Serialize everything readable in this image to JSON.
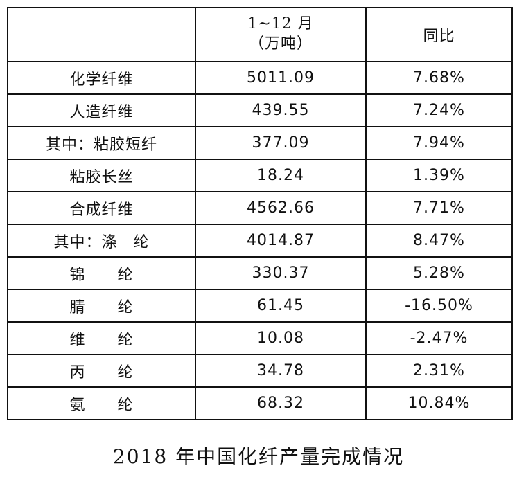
{
  "table": {
    "header": {
      "blank": "",
      "period": "1~12 月",
      "unit": "（万吨）",
      "yoy": "同比"
    },
    "rows": [
      {
        "name": "化学纤维",
        "value": "5011.09",
        "yoy": "7.68%"
      },
      {
        "name": "人造纤维",
        "value": "439.55",
        "yoy": "7.24%"
      },
      {
        "name": "其中：粘胶短纤",
        "value": "377.09",
        "yoy": "7.94%"
      },
      {
        "name": "粘胶长丝",
        "value": "18.24",
        "yoy": "1.39%"
      },
      {
        "name": "合成纤维",
        "value": "4562.66",
        "yoy": "7.71%"
      },
      {
        "name": "其中：涤　纶",
        "value": "4014.87",
        "yoy": "8.47%"
      },
      {
        "name": "锦　　纶",
        "value": "330.37",
        "yoy": "5.28%"
      },
      {
        "name": "腈　　纶",
        "value": "61.45",
        "yoy": "-16.50%"
      },
      {
        "name": "维　　纶",
        "value": "10.08",
        "yoy": "-2.47%"
      },
      {
        "name": "丙　　纶",
        "value": "34.78",
        "yoy": "2.31%"
      },
      {
        "name": "氨　　纶",
        "value": "68.32",
        "yoy": "10.84%"
      }
    ]
  },
  "caption": "2018 年中国化纤产量完成情况"
}
